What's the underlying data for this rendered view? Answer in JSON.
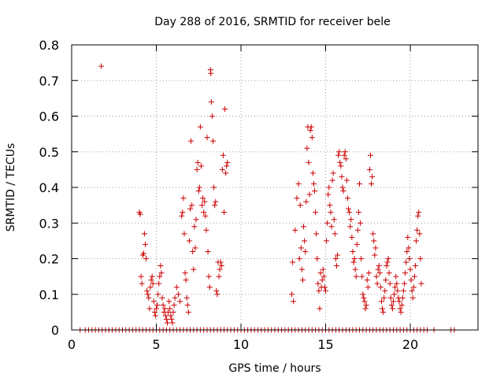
{
  "chart_data": {
    "type": "scatter",
    "title": "Day 288 of 2016, SRMTID for receiver bele",
    "xlabel": "GPS time / hours",
    "ylabel": "SRMTID / TECUs",
    "xlim": [
      0,
      24
    ],
    "ylim": [
      0,
      0.8
    ],
    "xticks": [
      0,
      5,
      10,
      15,
      20
    ],
    "yticks": [
      0,
      0.1,
      0.2,
      0.3,
      0.4,
      0.5,
      0.6,
      0.7,
      0.8
    ],
    "xtick_labels": [
      "0",
      "5",
      "10",
      "15",
      "20"
    ],
    "ytick_labels": [
      "0",
      "0.1",
      "0.2",
      "0.3",
      "0.4",
      "0.5",
      "0.6",
      "0.7",
      "0.8"
    ],
    "grid": true,
    "marker": "+",
    "color": "#cc0000",
    "series": [
      {
        "name": "SRMTID",
        "points": [
          [
            1.75,
            0.74
          ],
          [
            4.0,
            0.33
          ],
          [
            4.05,
            0.325
          ],
          [
            4.1,
            0.15
          ],
          [
            4.15,
            0.13
          ],
          [
            4.2,
            0.21
          ],
          [
            4.25,
            0.215
          ],
          [
            4.3,
            0.27
          ],
          [
            4.35,
            0.24
          ],
          [
            4.4,
            0.2
          ],
          [
            4.45,
            0.11
          ],
          [
            4.5,
            0.1
          ],
          [
            4.55,
            0.09
          ],
          [
            4.6,
            0.06
          ],
          [
            4.65,
            0.12
          ],
          [
            4.7,
            0.14
          ],
          [
            4.75,
            0.15
          ],
          [
            4.8,
            0.13
          ],
          [
            4.85,
            0.08
          ],
          [
            4.9,
            0.05
          ],
          [
            4.95,
            0.04
          ],
          [
            5.0,
            0.06
          ],
          [
            5.05,
            0.07
          ],
          [
            5.1,
            0.1
          ],
          [
            5.15,
            0.13
          ],
          [
            5.2,
            0.15
          ],
          [
            5.25,
            0.18
          ],
          [
            5.3,
            0.16
          ],
          [
            5.35,
            0.09
          ],
          [
            5.4,
            0.07
          ],
          [
            5.45,
            0.05
          ],
          [
            5.5,
            0.06
          ],
          [
            5.55,
            0.04
          ],
          [
            5.6,
            0.03
          ],
          [
            5.65,
            0.02
          ],
          [
            5.7,
            0.05
          ],
          [
            5.75,
            0.08
          ],
          [
            5.8,
            0.06
          ],
          [
            5.85,
            0.04
          ],
          [
            5.9,
            0.03
          ],
          [
            5.95,
            0.02
          ],
          [
            6.0,
            0.05
          ],
          [
            6.05,
            0.07
          ],
          [
            6.1,
            0.09
          ],
          [
            6.2,
            0.12
          ],
          [
            6.3,
            0.1
          ],
          [
            6.4,
            0.08
          ],
          [
            6.5,
            0.32
          ],
          [
            6.55,
            0.33
          ],
          [
            6.6,
            0.37
          ],
          [
            6.65,
            0.27
          ],
          [
            6.7,
            0.16
          ],
          [
            6.75,
            0.14
          ],
          [
            6.8,
            0.09
          ],
          [
            6.85,
            0.07
          ],
          [
            6.9,
            0.05
          ],
          [
            6.95,
            0.25
          ],
          [
            7.0,
            0.34
          ],
          [
            7.05,
            0.53
          ],
          [
            7.1,
            0.35
          ],
          [
            7.15,
            0.22
          ],
          [
            7.2,
            0.17
          ],
          [
            7.25,
            0.29
          ],
          [
            7.3,
            0.23
          ],
          [
            7.35,
            0.31
          ],
          [
            7.4,
            0.45
          ],
          [
            7.45,
            0.47
          ],
          [
            7.5,
            0.39
          ],
          [
            7.55,
            0.4
          ],
          [
            7.6,
            0.57
          ],
          [
            7.65,
            0.46
          ],
          [
            7.7,
            0.35
          ],
          [
            7.75,
            0.37
          ],
          [
            7.8,
            0.33
          ],
          [
            7.85,
            0.36
          ],
          [
            7.9,
            0.32
          ],
          [
            7.95,
            0.28
          ],
          [
            8.0,
            0.54
          ],
          [
            8.05,
            0.22
          ],
          [
            8.1,
            0.15
          ],
          [
            8.15,
            0.12
          ],
          [
            8.2,
            0.73
          ],
          [
            8.22,
            0.72
          ],
          [
            8.25,
            0.64
          ],
          [
            8.3,
            0.6
          ],
          [
            8.35,
            0.53
          ],
          [
            8.4,
            0.4
          ],
          [
            8.45,
            0.35
          ],
          [
            8.5,
            0.36
          ],
          [
            8.55,
            0.11
          ],
          [
            8.6,
            0.1
          ],
          [
            8.65,
            0.19
          ],
          [
            8.7,
            0.15
          ],
          [
            8.75,
            0.17
          ],
          [
            8.8,
            0.19
          ],
          [
            8.85,
            0.18
          ],
          [
            8.9,
            0.45
          ],
          [
            8.95,
            0.49
          ],
          [
            9.0,
            0.33
          ],
          [
            9.05,
            0.62
          ],
          [
            9.1,
            0.44
          ],
          [
            9.15,
            0.46
          ],
          [
            9.2,
            0.47
          ],
          [
            13.0,
            0.1
          ],
          [
            13.05,
            0.19
          ],
          [
            13.1,
            0.08
          ],
          [
            13.2,
            0.28
          ],
          [
            13.3,
            0.37
          ],
          [
            13.4,
            0.41
          ],
          [
            13.45,
            0.2
          ],
          [
            13.5,
            0.35
          ],
          [
            13.55,
            0.23
          ],
          [
            13.6,
            0.17
          ],
          [
            13.65,
            0.14
          ],
          [
            13.7,
            0.29
          ],
          [
            13.75,
            0.25
          ],
          [
            13.8,
            0.22
          ],
          [
            13.85,
            0.36
          ],
          [
            13.9,
            0.51
          ],
          [
            13.95,
            0.57
          ],
          [
            14.0,
            0.47
          ],
          [
            14.05,
            0.38
          ],
          [
            14.1,
            0.56
          ],
          [
            14.15,
            0.57
          ],
          [
            14.2,
            0.54
          ],
          [
            14.25,
            0.44
          ],
          [
            14.3,
            0.41
          ],
          [
            14.35,
            0.39
          ],
          [
            14.4,
            0.33
          ],
          [
            14.45,
            0.27
          ],
          [
            14.5,
            0.2
          ],
          [
            14.55,
            0.13
          ],
          [
            14.6,
            0.11
          ],
          [
            14.65,
            0.06
          ],
          [
            14.7,
            0.16
          ],
          [
            14.75,
            0.12
          ],
          [
            14.8,
            0.14
          ],
          [
            14.85,
            0.17
          ],
          [
            14.9,
            0.15
          ],
          [
            14.95,
            0.12
          ],
          [
            15.0,
            0.11
          ],
          [
            15.05,
            0.25
          ],
          [
            15.1,
            0.3
          ],
          [
            15.15,
            0.38
          ],
          [
            15.2,
            0.4
          ],
          [
            15.25,
            0.35
          ],
          [
            15.3,
            0.33
          ],
          [
            15.35,
            0.29
          ],
          [
            15.4,
            0.42
          ],
          [
            15.45,
            0.44
          ],
          [
            15.5,
            0.31
          ],
          [
            15.55,
            0.27
          ],
          [
            15.6,
            0.2
          ],
          [
            15.65,
            0.18
          ],
          [
            15.7,
            0.21
          ],
          [
            15.75,
            0.49
          ],
          [
            15.8,
            0.5
          ],
          [
            15.85,
            0.47
          ],
          [
            15.9,
            0.46
          ],
          [
            15.95,
            0.43
          ],
          [
            16.0,
            0.4
          ],
          [
            16.05,
            0.39
          ],
          [
            16.1,
            0.49
          ],
          [
            16.15,
            0.5
          ],
          [
            16.2,
            0.48
          ],
          [
            16.25,
            0.42
          ],
          [
            16.3,
            0.37
          ],
          [
            16.35,
            0.34
          ],
          [
            16.4,
            0.33
          ],
          [
            16.45,
            0.29
          ],
          [
            16.5,
            0.31
          ],
          [
            16.55,
            0.26
          ],
          [
            16.6,
            0.22
          ],
          [
            16.65,
            0.19
          ],
          [
            16.7,
            0.2
          ],
          [
            16.75,
            0.17
          ],
          [
            16.8,
            0.15
          ],
          [
            16.85,
            0.24
          ],
          [
            16.9,
            0.28
          ],
          [
            16.95,
            0.33
          ],
          [
            17.0,
            0.41
          ],
          [
            17.05,
            0.3
          ],
          [
            17.1,
            0.2
          ],
          [
            17.15,
            0.15
          ],
          [
            17.2,
            0.1
          ],
          [
            17.25,
            0.09
          ],
          [
            17.3,
            0.08
          ],
          [
            17.35,
            0.06
          ],
          [
            17.4,
            0.07
          ],
          [
            17.45,
            0.14
          ],
          [
            17.5,
            0.12
          ],
          [
            17.55,
            0.16
          ],
          [
            17.6,
            0.45
          ],
          [
            17.65,
            0.49
          ],
          [
            17.7,
            0.41
          ],
          [
            17.75,
            0.43
          ],
          [
            17.8,
            0.27
          ],
          [
            17.85,
            0.25
          ],
          [
            17.9,
            0.21
          ],
          [
            17.95,
            0.23
          ],
          [
            18.0,
            0.15
          ],
          [
            18.05,
            0.13
          ],
          [
            18.1,
            0.17
          ],
          [
            18.15,
            0.18
          ],
          [
            18.2,
            0.16
          ],
          [
            18.25,
            0.12
          ],
          [
            18.3,
            0.08
          ],
          [
            18.35,
            0.06
          ],
          [
            18.4,
            0.05
          ],
          [
            18.45,
            0.09
          ],
          [
            18.5,
            0.11
          ],
          [
            18.55,
            0.14
          ],
          [
            18.6,
            0.18
          ],
          [
            18.65,
            0.19
          ],
          [
            18.7,
            0.2
          ],
          [
            18.75,
            0.16
          ],
          [
            18.8,
            0.13
          ],
          [
            18.85,
            0.09
          ],
          [
            18.9,
            0.07
          ],
          [
            18.95,
            0.06
          ],
          [
            19.0,
            0.08
          ],
          [
            19.05,
            0.1
          ],
          [
            19.1,
            0.12
          ],
          [
            19.15,
            0.15
          ],
          [
            19.2,
            0.13
          ],
          [
            19.25,
            0.11
          ],
          [
            19.3,
            0.09
          ],
          [
            19.35,
            0.08
          ],
          [
            19.4,
            0.06
          ],
          [
            19.45,
            0.05
          ],
          [
            19.5,
            0.07
          ],
          [
            19.55,
            0.09
          ],
          [
            19.6,
            0.11
          ],
          [
            19.65,
            0.13
          ],
          [
            19.7,
            0.16
          ],
          [
            19.75,
            0.19
          ],
          [
            19.8,
            0.22
          ],
          [
            19.85,
            0.26
          ],
          [
            19.9,
            0.23
          ],
          [
            19.95,
            0.2
          ],
          [
            20.0,
            0.17
          ],
          [
            20.05,
            0.14
          ],
          [
            20.1,
            0.11
          ],
          [
            20.15,
            0.09
          ],
          [
            20.2,
            0.12
          ],
          [
            20.25,
            0.15
          ],
          [
            20.3,
            0.18
          ],
          [
            20.35,
            0.25
          ],
          [
            20.4,
            0.28
          ],
          [
            20.45,
            0.32
          ],
          [
            20.5,
            0.33
          ],
          [
            20.55,
            0.27
          ],
          [
            20.6,
            0.2
          ],
          [
            20.65,
            0.13
          ]
        ]
      }
    ],
    "zero_points_x": [
      0.5,
      0.8,
      1.0,
      1.2,
      1.4,
      1.6,
      1.8,
      2.0,
      2.2,
      2.4,
      2.6,
      2.8,
      3.0,
      3.2,
      3.4,
      3.6,
      3.8,
      4.0,
      4.2,
      4.4,
      4.6,
      4.8,
      5.0,
      5.2,
      5.4,
      5.6,
      5.8,
      6.0,
      6.2,
      6.4,
      6.6,
      6.8,
      7.0,
      7.2,
      7.4,
      7.6,
      7.8,
      8.0,
      8.2,
      8.4,
      8.6,
      8.8,
      9.0,
      9.2,
      9.4,
      9.6,
      9.8,
      10.0,
      10.2,
      10.4,
      10.6,
      10.8,
      11.0,
      11.2,
      11.4,
      11.6,
      11.8,
      12.0,
      12.2,
      12.4,
      12.6,
      12.8,
      13.0,
      13.2,
      13.4,
      13.6,
      13.8,
      14.0,
      14.2,
      14.4,
      14.6,
      14.8,
      15.0,
      15.2,
      15.4,
      15.6,
      15.8,
      16.0,
      16.2,
      16.4,
      16.6,
      16.8,
      17.0,
      17.2,
      17.4,
      17.6,
      17.8,
      18.0,
      18.2,
      18.4,
      18.6,
      18.8,
      19.0,
      19.2,
      19.4,
      19.6,
      19.8,
      20.0,
      20.2,
      20.4,
      20.6,
      20.8,
      21.0,
      21.4,
      22.4,
      22.6
    ]
  }
}
